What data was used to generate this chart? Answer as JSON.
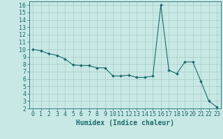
{
  "x": [
    0,
    1,
    2,
    3,
    4,
    5,
    6,
    7,
    8,
    9,
    10,
    11,
    12,
    13,
    14,
    15,
    16,
    17,
    18,
    19,
    20,
    21,
    22,
    23
  ],
  "y": [
    10.0,
    9.8,
    9.4,
    9.2,
    8.7,
    7.9,
    7.8,
    7.8,
    7.5,
    7.5,
    6.4,
    6.4,
    6.5,
    6.2,
    6.2,
    6.4,
    16.0,
    7.2,
    6.7,
    8.3,
    8.3,
    5.7,
    3.0,
    2.2
  ],
  "line_color": "#1a6b6b",
  "marker": "D",
  "marker_size": 2.0,
  "background_color": "#c8e8e5",
  "grid_color": "#a8ccc9",
  "xlabel": "Humidex (Indice chaleur)",
  "xlabel_fontsize": 7,
  "tick_fontsize": 6,
  "ylim": [
    2,
    16.5
  ],
  "xlim": [
    -0.5,
    23.5
  ],
  "yticks": [
    2,
    3,
    4,
    5,
    6,
    7,
    8,
    9,
    10,
    11,
    12,
    13,
    14,
    15,
    16
  ],
  "xticks": [
    0,
    1,
    2,
    3,
    4,
    5,
    6,
    7,
    8,
    9,
    10,
    11,
    12,
    13,
    14,
    15,
    16,
    17,
    18,
    19,
    20,
    21,
    22,
    23
  ]
}
